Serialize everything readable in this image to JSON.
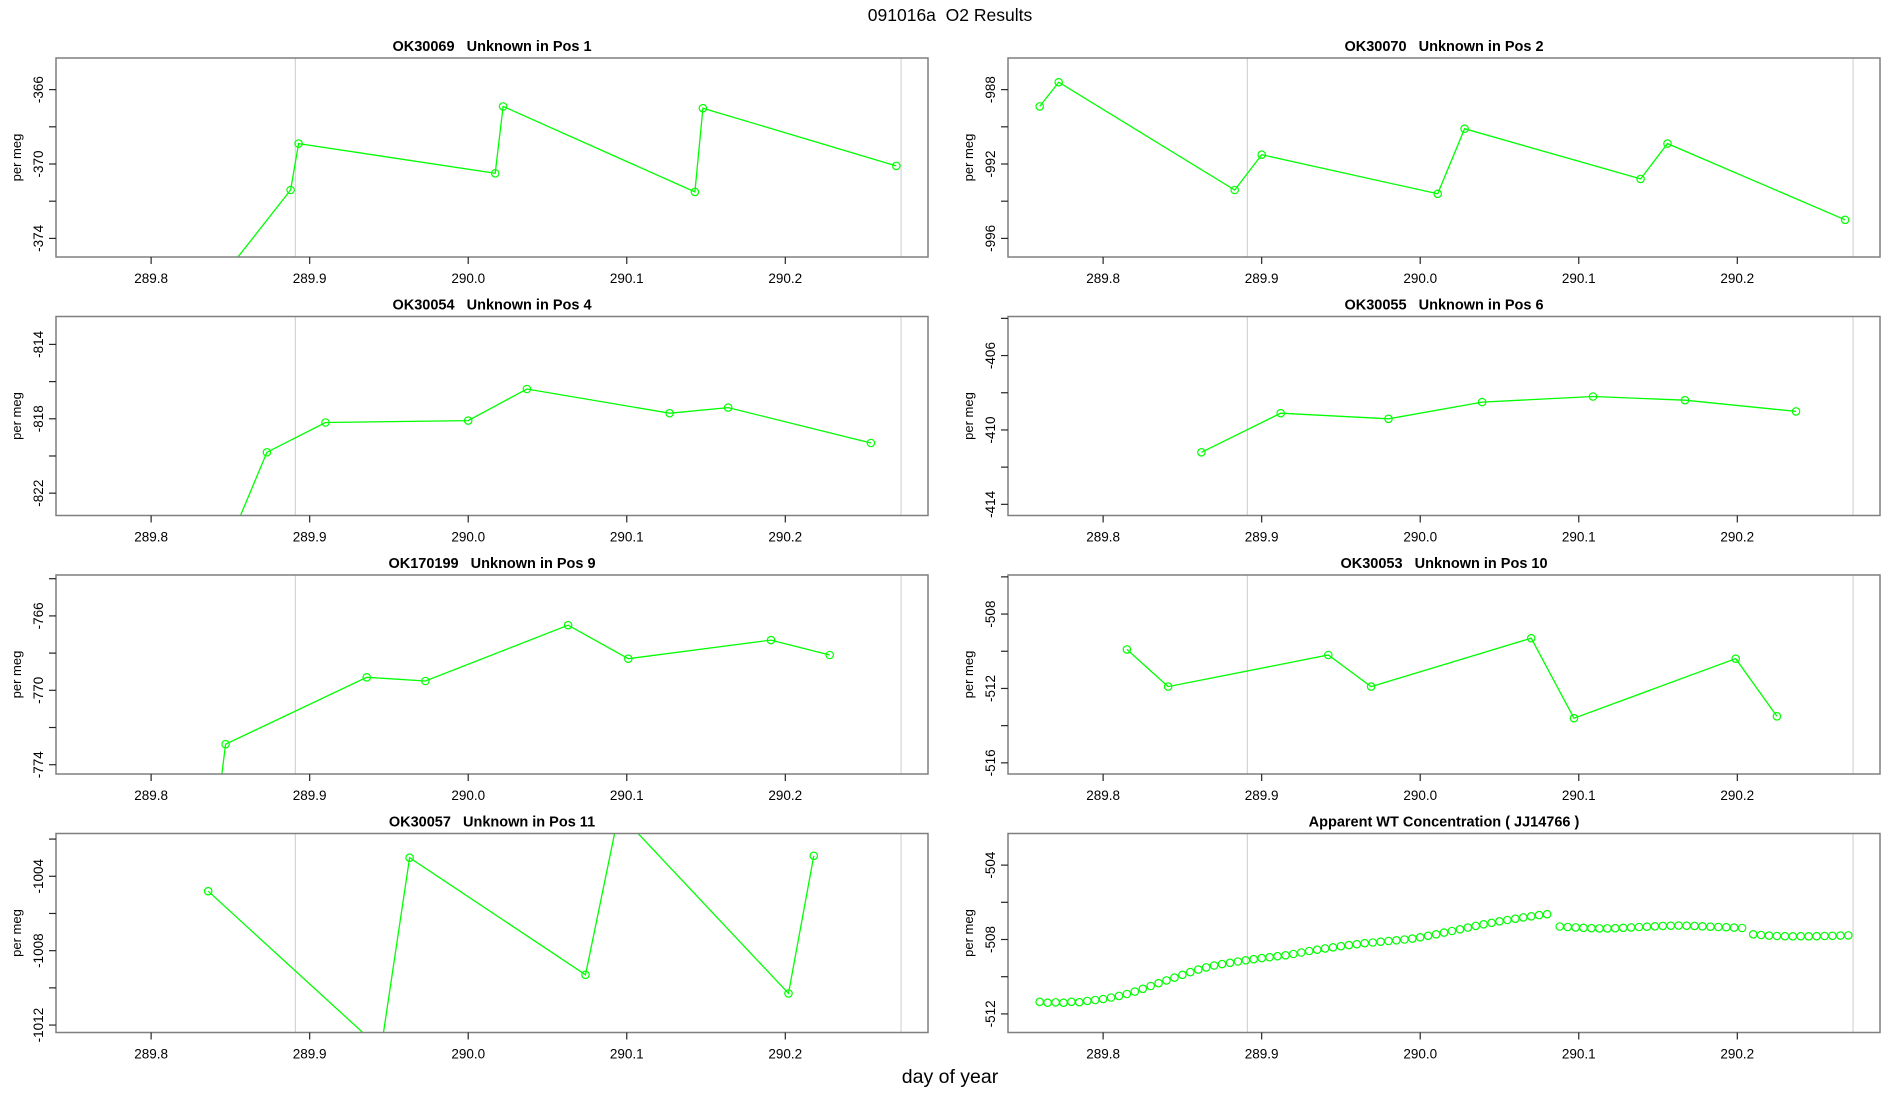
{
  "title": "091016a  O2 Results",
  "xlabel": "day of year",
  "colors": {
    "series": "#00FF00",
    "grid": "#D4D4D4",
    "frame": "#7F7F7F",
    "tick": "#262626",
    "text": "#000000"
  },
  "axis": {
    "xlim": [
      289.74,
      290.29
    ],
    "xtick_values": [
      289.8,
      289.9,
      290.0,
      290.1,
      290.2
    ],
    "xtick_labels": [
      "289.8",
      "289.9",
      "290.0",
      "290.1",
      "290.2"
    ],
    "gridlines_x": [
      289.891,
      290.273
    ],
    "ylabel": "per meg",
    "ytick_step": 2
  },
  "chart_data": [
    {
      "type": "line",
      "title": "OK30069   Unknown in Pos 1",
      "ylim": [
        -375.0,
        -364.3
      ],
      "yticks_labeled": [
        -366,
        -370,
        -374
      ],
      "points": [
        [
          289.84,
          -376.6
        ],
        [
          289.888,
          -371.4
        ],
        [
          289.893,
          -368.9
        ],
        [
          290.017,
          -370.5
        ],
        [
          290.022,
          -366.9
        ],
        [
          290.143,
          -371.5
        ],
        [
          290.148,
          -367.0
        ],
        [
          290.27,
          -370.1
        ]
      ]
    },
    {
      "type": "line",
      "title": "OK30070   Unknown in Pos 2",
      "ylim": [
        -997.0,
        -986.3
      ],
      "yticks_labeled": [
        -988,
        -992,
        -996
      ],
      "points": [
        [
          289.76,
          -988.9
        ],
        [
          289.772,
          -987.6
        ],
        [
          289.883,
          -993.4
        ],
        [
          289.9,
          -991.5
        ],
        [
          290.011,
          -993.6
        ],
        [
          290.028,
          -990.1
        ],
        [
          290.139,
          -992.8
        ],
        [
          290.156,
          -990.9
        ],
        [
          290.268,
          -995.0
        ]
      ]
    },
    {
      "type": "line",
      "title": "OK30054   Unknown in Pos 4",
      "ylim": [
        -823.2,
        -812.5
      ],
      "yticks_labeled": [
        -814,
        -818,
        -822
      ],
      "points": [
        [
          289.85,
          -824.5
        ],
        [
          289.873,
          -819.8
        ],
        [
          289.91,
          -818.2
        ],
        [
          290.0,
          -818.1
        ],
        [
          290.037,
          -816.4
        ],
        [
          290.127,
          -817.7
        ],
        [
          290.164,
          -817.4
        ],
        [
          290.254,
          -819.3
        ]
      ]
    },
    {
      "type": "line",
      "title": "OK30055   Unknown in Pos 6",
      "ylim": [
        -414.6,
        -403.9
      ],
      "yticks_labeled": [
        -406,
        -410,
        -414
      ],
      "points": [
        [
          289.862,
          -411.2
        ],
        [
          289.912,
          -409.1
        ],
        [
          289.98,
          -409.4
        ],
        [
          290.039,
          -408.5
        ],
        [
          290.109,
          -408.2
        ],
        [
          290.167,
          -408.4
        ],
        [
          290.237,
          -409.0
        ]
      ]
    },
    {
      "type": "line",
      "title": "OK170199   Unknown in Pos 9",
      "ylim": [
        -774.5,
        -763.8
      ],
      "yticks_labeled": [
        -766,
        -770,
        -774
      ],
      "points": [
        [
          289.843,
          -775.6
        ],
        [
          289.847,
          -772.9
        ],
        [
          289.936,
          -769.3
        ],
        [
          289.973,
          -769.5
        ],
        [
          290.063,
          -766.5
        ],
        [
          290.101,
          -768.3
        ],
        [
          290.191,
          -767.3
        ],
        [
          290.228,
          -768.1
        ]
      ]
    },
    {
      "type": "line",
      "title": "OK30053   Unknown in Pos 10",
      "ylim": [
        -516.6,
        -505.9
      ],
      "yticks_labeled": [
        -508,
        -512,
        -516
      ],
      "points": [
        [
          289.815,
          -509.9
        ],
        [
          289.841,
          -511.9
        ],
        [
          289.942,
          -510.2
        ],
        [
          289.969,
          -511.9
        ],
        [
          290.07,
          -509.3
        ],
        [
          290.097,
          -513.6
        ],
        [
          290.199,
          -510.4
        ],
        [
          290.225,
          -513.5
        ]
      ]
    },
    {
      "type": "line",
      "title": "OK30057   Unknown in Pos 11",
      "ylim": [
        -1012.4,
        -1001.7
      ],
      "yticks_labeled": [
        -1004,
        -1008,
        -1012
      ],
      "points": [
        [
          289.836,
          -1004.8
        ],
        [
          289.945,
          -1013.3
        ],
        [
          289.963,
          -1003.0
        ],
        [
          290.074,
          -1009.3
        ],
        [
          290.095,
          -1000.6
        ],
        [
          290.202,
          -1010.3
        ],
        [
          290.218,
          -1002.9
        ]
      ]
    },
    {
      "type": "scatter",
      "title": "Apparent WT Concentration ( JJ14766 )",
      "ylim": [
        -513.0,
        -502.3
      ],
      "yticks_labeled": [
        -504,
        -508,
        -512
      ],
      "marker_only": true,
      "series": [
        {
          "x_start": 289.76,
          "x_step": 0.005,
          "values": [
            -511.35,
            -511.4,
            -511.38,
            -511.4,
            -511.35,
            -511.37,
            -511.3,
            -511.25,
            -511.2,
            -511.12,
            -511.03,
            -510.93,
            -510.8,
            -510.65,
            -510.5,
            -510.35,
            -510.2,
            -510.05,
            -509.9,
            -509.75,
            -509.62,
            -509.5,
            -509.4,
            -509.32,
            -509.25,
            -509.18,
            -509.12,
            -509.06,
            -509.0,
            -508.95,
            -508.9,
            -508.85,
            -508.78,
            -508.7,
            -508.62,
            -508.55,
            -508.48,
            -508.42,
            -508.36,
            -508.3,
            -508.25,
            -508.2,
            -508.16,
            -508.12,
            -508.08,
            -508.04,
            -508.0,
            -507.95,
            -507.88,
            -507.8,
            -507.72,
            -507.63,
            -507.54,
            -507.45,
            -507.36,
            -507.27,
            -507.18,
            -507.1,
            -507.02,
            -506.95,
            -506.88,
            -506.81,
            -506.75,
            -506.69,
            -506.64
          ]
        },
        {
          "x_start": 290.088,
          "x_step": 0.005,
          "values": [
            -507.3,
            -507.33,
            -507.35,
            -507.37,
            -507.39,
            -507.4,
            -507.4,
            -507.39,
            -507.37,
            -507.35,
            -507.33,
            -507.31,
            -507.29,
            -507.27,
            -507.26,
            -507.25,
            -507.26,
            -507.27,
            -507.29,
            -507.31,
            -507.33,
            -507.34,
            -507.36,
            -507.38
          ]
        },
        {
          "x_start": 290.21,
          "x_step": 0.005,
          "values": [
            -507.72,
            -507.76,
            -507.79,
            -507.81,
            -507.82,
            -507.83,
            -507.82,
            -507.83,
            -507.82,
            -507.81,
            -507.8,
            -507.79,
            -507.78
          ]
        }
      ]
    }
  ]
}
